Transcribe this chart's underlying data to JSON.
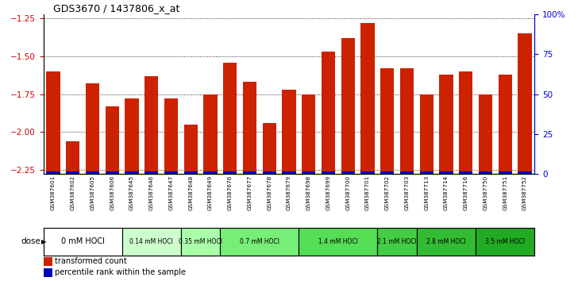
{
  "title": "GDS3670 / 1437806_x_at",
  "samples": [
    "GSM387601",
    "GSM387602",
    "GSM387605",
    "GSM387606",
    "GSM387645",
    "GSM387646",
    "GSM387647",
    "GSM387648",
    "GSM387649",
    "GSM387676",
    "GSM387677",
    "GSM387678",
    "GSM387679",
    "GSM387698",
    "GSM387699",
    "GSM387700",
    "GSM387701",
    "GSM387702",
    "GSM387703",
    "GSM387713",
    "GSM387714",
    "GSM387716",
    "GSM387750",
    "GSM387751",
    "GSM387752"
  ],
  "transformed_count": [
    -1.6,
    -2.06,
    -1.68,
    -1.83,
    -1.78,
    -1.63,
    -1.78,
    -1.95,
    -1.75,
    -1.54,
    -1.67,
    -1.94,
    -1.72,
    -1.75,
    -1.47,
    -1.38,
    -1.28,
    -1.58,
    -1.58,
    -1.75,
    -1.62,
    -1.6,
    -1.75,
    -1.62,
    -1.35
  ],
  "percentile_rank": [
    5,
    4,
    5,
    5,
    5,
    5,
    5,
    5,
    5,
    8,
    5,
    5,
    5,
    5,
    10,
    10,
    12,
    10,
    8,
    5,
    8,
    8,
    10,
    8,
    10
  ],
  "y_min": -2.28,
  "y_max": -1.22,
  "yticks_left": [
    -1.25,
    -1.5,
    -1.75,
    -2.0,
    -2.25
  ],
  "yticks_right": [
    0,
    25,
    50,
    75,
    100
  ],
  "ytick_right_labels": [
    "0",
    "25",
    "50",
    "75",
    "100%"
  ],
  "dose_groups": [
    {
      "label": "0 mM HOCl",
      "samples": [
        "GSM387601",
        "GSM387602",
        "GSM387605",
        "GSM387606"
      ],
      "color": "#ffffff"
    },
    {
      "label": "0.14 mM HOCl",
      "samples": [
        "GSM387645",
        "GSM387646",
        "GSM387647"
      ],
      "color": "#ccffcc"
    },
    {
      "label": "0.35 mM HOCl",
      "samples": [
        "GSM387648",
        "GSM387649"
      ],
      "color": "#aaffaa"
    },
    {
      "label": "0.7 mM HOCl",
      "samples": [
        "GSM387676",
        "GSM387677",
        "GSM387678",
        "GSM387679"
      ],
      "color": "#77ee77"
    },
    {
      "label": "1.4 mM HOCl",
      "samples": [
        "GSM387698",
        "GSM387699",
        "GSM387700",
        "GSM387701"
      ],
      "color": "#55dd55"
    },
    {
      "label": "2.1 mM HOCl",
      "samples": [
        "GSM387702",
        "GSM387703"
      ],
      "color": "#44cc44"
    },
    {
      "label": "2.8 mM HOCl",
      "samples": [
        "GSM387713",
        "GSM387714",
        "GSM387716"
      ],
      "color": "#33bb33"
    },
    {
      "label": "3.5 mM HOCl",
      "samples": [
        "GSM387750",
        "GSM387751",
        "GSM387752"
      ],
      "color": "#22aa22"
    }
  ],
  "bar_color_red": "#cc2200",
  "bar_color_blue": "#0000bb",
  "baseline": -2.28,
  "tick_label_color_left": "#cc0000",
  "tick_label_color_right": "#0000cc",
  "dose_label_fontsize": 7,
  "small_dose_fontsize": 5.5
}
